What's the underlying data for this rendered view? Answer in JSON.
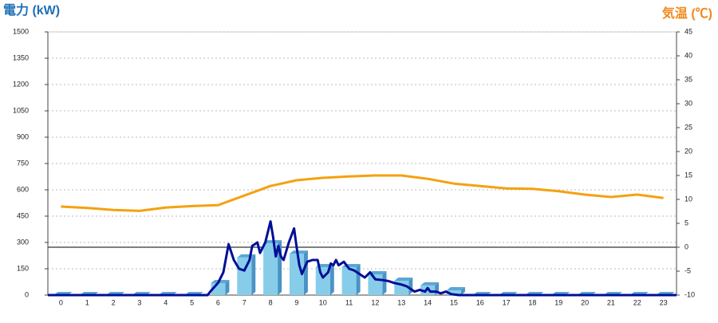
{
  "chart_data": {
    "type": "bar",
    "y_label": "電力 (kW)",
    "y2_label": "気温 (℃)",
    "categories": [
      "0",
      "1",
      "2",
      "3",
      "4",
      "5",
      "6",
      "7",
      "8",
      "9",
      "10",
      "11",
      "12",
      "13",
      "14",
      "15",
      "16",
      "17",
      "18",
      "19",
      "20",
      "21",
      "22",
      "23"
    ],
    "xlim": [
      -0.5,
      23.5
    ],
    "ylim": [
      0,
      1500
    ],
    "yticks": [
      0,
      150,
      300,
      450,
      600,
      750,
      900,
      1050,
      1200,
      1350,
      1500
    ],
    "y2lim": [
      -10,
      45
    ],
    "y2ticks": [
      -10,
      -5,
      0,
      5,
      10,
      15,
      20,
      25,
      30,
      35,
      40,
      45
    ],
    "grid": true,
    "series": [
      {
        "type": "bar",
        "color": "#87cdea",
        "values": [
          0,
          0,
          0,
          0,
          0,
          0,
          68,
          214,
          295,
          236,
          159,
          159,
          118,
          82,
          55,
          27,
          0,
          0,
          0,
          0,
          0,
          0,
          0,
          0
        ]
      },
      {
        "type": "line",
        "color": "#000f96",
        "x": [
          -0.5,
          5.6,
          5.7,
          6.0,
          6.2,
          6.4,
          6.6,
          6.8,
          7.0,
          7.2,
          7.3,
          7.5,
          7.6,
          7.8,
          8.0,
          8.1,
          8.2,
          8.3,
          8.4,
          8.5,
          8.7,
          8.9,
          9.0,
          9.1,
          9.2,
          9.4,
          9.6,
          9.8,
          9.9,
          10.0,
          10.2,
          10.3,
          10.4,
          10.5,
          10.6,
          10.8,
          11.0,
          11.2,
          11.4,
          11.6,
          11.8,
          11.9,
          12.0,
          12.3,
          12.5,
          12.7,
          13.0,
          13.2,
          13.4,
          13.5,
          13.7,
          13.9,
          14.0,
          14.1,
          14.3,
          14.5,
          14.7,
          14.9,
          15.2,
          23.5
        ],
        "values": [
          0,
          0,
          20,
          70,
          130,
          290,
          200,
          150,
          140,
          200,
          280,
          300,
          240,
          300,
          420,
          330,
          220,
          280,
          220,
          200,
          300,
          380,
          270,
          170,
          120,
          190,
          200,
          200,
          130,
          100,
          130,
          180,
          170,
          200,
          170,
          190,
          150,
          140,
          120,
          100,
          130,
          110,
          90,
          85,
          80,
          70,
          60,
          50,
          30,
          20,
          30,
          20,
          40,
          20,
          20,
          10,
          20,
          5,
          0,
          0
        ]
      },
      {
        "type": "line",
        "axis": "y2",
        "color": "#f5a10f",
        "values": [
          8.5,
          8.2,
          7.8,
          7.6,
          8.3,
          8.6,
          8.8,
          10.8,
          12.8,
          14,
          14.5,
          14.8,
          15,
          15,
          14.3,
          13.3,
          12.8,
          12.3,
          12.2,
          11.7,
          11,
          10.5,
          11,
          10.3
        ]
      }
    ]
  }
}
